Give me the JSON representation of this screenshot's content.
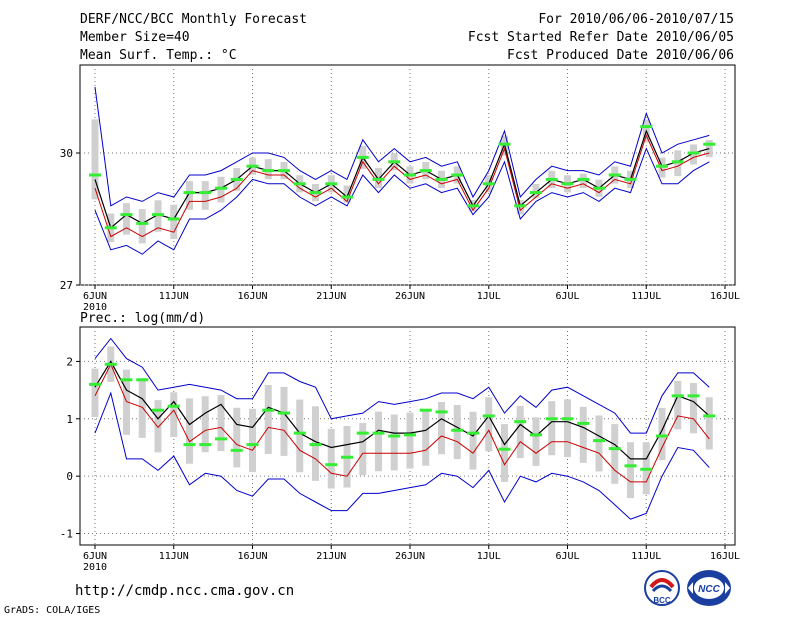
{
  "header": {
    "title": "DERF/NCC/BCC Monthly Forecast",
    "member_size": "Member Size=40",
    "variable": "Mean Surf. Temp.: °C",
    "period": "For 2010/06/06-2010/07/15",
    "fcst_started": "Fcst Started Refer Date 2010/06/05",
    "fcst_produced": "Fcst Produced Date 2010/06/06"
  },
  "footer": {
    "url": "http://cmdp.ncc.cma.gov.cn",
    "credit": "GrADS: COLA/IGES",
    "logo_left": "BCC",
    "logo_right": "NCC"
  },
  "colors": {
    "ensemble_mean": "#000000",
    "median": "#cc0000",
    "envelope": "#0000cc",
    "observation": "#33ee33",
    "member_box": "#d0d0d0",
    "grid": "#777777"
  },
  "chart_data": [
    {
      "type": "line",
      "title": "Mean Surf. Temp.: °C",
      "x_tick_labels": [
        "6JUN",
        "11JUN",
        "16JUN",
        "21JUN",
        "26JUN",
        "1JUL",
        "6JUL",
        "11JUL",
        "16JUL"
      ],
      "x_tick_days": [
        0,
        5,
        10,
        15,
        20,
        25,
        30,
        35,
        40
      ],
      "x_sub_label": "2010",
      "ylim": [
        27,
        32
      ],
      "y_tick_labels": [
        "27",
        "30"
      ],
      "y_ticks": [
        27,
        30
      ],
      "days": [
        0,
        1,
        2,
        3,
        4,
        5,
        6,
        7,
        8,
        9,
        10,
        11,
        12,
        13,
        14,
        15,
        16,
        17,
        18,
        19,
        20,
        21,
        22,
        23,
        24,
        25,
        26,
        27,
        28,
        29,
        30,
        31,
        32,
        33,
        34,
        35,
        36,
        37,
        38,
        39
      ],
      "series": [
        {
          "name": "ensemble mean",
          "color": "#000000",
          "values": [
            29.4,
            28.3,
            28.6,
            28.4,
            28.6,
            28.5,
            29.1,
            29.1,
            29.2,
            29.4,
            29.7,
            29.6,
            29.6,
            29.3,
            29.1,
            29.3,
            29.0,
            29.9,
            29.4,
            29.8,
            29.5,
            29.6,
            29.4,
            29.5,
            28.8,
            29.3,
            30.2,
            28.8,
            29.1,
            29.4,
            29.3,
            29.4,
            29.2,
            29.5,
            29.4,
            30.5,
            29.7,
            29.8,
            30.0,
            30.1
          ]
        },
        {
          "name": "median",
          "color": "#cc0000",
          "values": [
            29.2,
            28.1,
            28.3,
            28.1,
            28.3,
            28.2,
            28.9,
            28.9,
            29.0,
            29.2,
            29.6,
            29.5,
            29.5,
            29.2,
            29.0,
            29.2,
            28.9,
            29.8,
            29.3,
            29.7,
            29.4,
            29.5,
            29.3,
            29.4,
            28.7,
            29.2,
            30.1,
            28.7,
            29.0,
            29.3,
            29.2,
            29.3,
            29.1,
            29.4,
            29.3,
            30.4,
            29.6,
            29.7,
            29.9,
            30.0
          ]
        },
        {
          "name": "ensemble max",
          "color": "#0000cc",
          "values": [
            31.5,
            28.8,
            29.0,
            28.9,
            29.1,
            29.0,
            29.5,
            29.5,
            29.6,
            29.8,
            30.0,
            30.0,
            29.9,
            29.6,
            29.4,
            29.6,
            29.4,
            30.3,
            29.8,
            30.1,
            29.8,
            29.9,
            29.7,
            29.8,
            29.0,
            29.6,
            30.5,
            29.0,
            29.4,
            29.7,
            29.6,
            29.6,
            29.5,
            29.8,
            29.7,
            30.9,
            30.0,
            30.2,
            30.3,
            30.4
          ]
        },
        {
          "name": "ensemble min",
          "color": "#0000cc",
          "values": [
            28.7,
            27.8,
            27.9,
            27.7,
            28.0,
            27.8,
            28.5,
            28.5,
            28.7,
            29.0,
            29.4,
            29.3,
            29.3,
            29.0,
            28.8,
            29.0,
            28.8,
            29.5,
            29.1,
            29.5,
            29.2,
            29.3,
            29.1,
            29.2,
            28.6,
            29.0,
            29.8,
            28.5,
            28.9,
            29.1,
            29.0,
            29.1,
            28.9,
            29.2,
            29.1,
            30.1,
            29.3,
            29.3,
            29.6,
            29.8
          ]
        },
        {
          "name": "observation",
          "color": "#33ee33",
          "values": [
            29.5,
            28.3,
            28.6,
            28.4,
            28.6,
            28.5,
            29.1,
            29.1,
            29.2,
            29.4,
            29.7,
            29.6,
            29.6,
            29.3,
            29.1,
            29.3,
            29.0,
            29.9,
            29.4,
            29.8,
            29.5,
            29.6,
            29.4,
            29.5,
            28.8,
            29.3,
            30.2,
            28.8,
            29.1,
            29.4,
            29.3,
            29.4,
            29.2,
            29.5,
            29.4,
            30.6,
            29.7,
            29.8,
            30.0,
            30.2
          ]
        }
      ]
    },
    {
      "type": "line",
      "title": "Prec.: log(mm/d)",
      "x_tick_labels": [
        "6JUN",
        "11JUN",
        "16JUN",
        "21JUN",
        "26JUN",
        "1JUL",
        "6JUL",
        "11JUL",
        "16JUL"
      ],
      "x_tick_days": [
        0,
        5,
        10,
        15,
        20,
        25,
        30,
        35,
        40
      ],
      "x_sub_label": "2010",
      "ylim": [
        -1.2,
        2.6
      ],
      "y_tick_labels": [
        "-1",
        "0",
        "1",
        "2"
      ],
      "y_ticks": [
        -1,
        0,
        1,
        2
      ],
      "days": [
        0,
        1,
        2,
        3,
        4,
        5,
        6,
        7,
        8,
        9,
        10,
        11,
        12,
        13,
        14,
        15,
        16,
        17,
        18,
        19,
        20,
        21,
        22,
        23,
        24,
        25,
        26,
        27,
        28,
        29,
        30,
        31,
        32,
        33,
        34,
        35,
        36,
        37,
        38,
        39
      ],
      "series": [
        {
          "name": "ensemble mean",
          "color": "#000000",
          "values": [
            1.55,
            2.0,
            1.5,
            1.35,
            1.0,
            1.3,
            0.9,
            1.1,
            1.25,
            0.9,
            0.85,
            1.2,
            1.1,
            0.75,
            0.6,
            0.5,
            0.55,
            0.6,
            0.8,
            0.75,
            0.75,
            0.8,
            1.0,
            0.85,
            0.7,
            1.05,
            0.55,
            0.9,
            0.7,
            0.95,
            0.95,
            0.85,
            0.7,
            0.55,
            0.3,
            0.3,
            0.8,
            1.4,
            1.3,
            1.05
          ]
        },
        {
          "name": "median",
          "color": "#cc0000",
          "values": [
            1.4,
            1.95,
            1.3,
            1.2,
            0.85,
            1.15,
            0.6,
            0.8,
            0.85,
            0.55,
            0.45,
            0.85,
            0.8,
            0.45,
            0.3,
            0.05,
            0.0,
            0.4,
            0.4,
            0.4,
            0.4,
            0.45,
            0.7,
            0.6,
            0.4,
            0.8,
            0.2,
            0.6,
            0.4,
            0.6,
            0.6,
            0.5,
            0.4,
            0.1,
            -0.1,
            -0.1,
            0.5,
            1.05,
            1.0,
            0.65
          ]
        },
        {
          "name": "ensemble max",
          "color": "#0000cc",
          "values": [
            2.05,
            2.4,
            2.05,
            1.9,
            1.5,
            1.55,
            1.6,
            1.55,
            1.5,
            1.35,
            1.35,
            1.8,
            1.8,
            1.65,
            1.55,
            1.0,
            1.05,
            1.1,
            1.3,
            1.25,
            1.3,
            1.35,
            1.45,
            1.45,
            1.35,
            1.55,
            1.1,
            1.4,
            1.2,
            1.5,
            1.55,
            1.4,
            1.25,
            1.1,
            0.75,
            0.75,
            1.4,
            1.8,
            1.8,
            1.55
          ]
        },
        {
          "name": "ensemble min",
          "color": "#0000cc",
          "values": [
            0.75,
            1.45,
            0.3,
            0.3,
            0.1,
            0.35,
            -0.15,
            0.05,
            0.0,
            -0.25,
            -0.35,
            -0.05,
            -0.05,
            -0.3,
            -0.45,
            -0.6,
            -0.6,
            -0.3,
            -0.3,
            -0.25,
            -0.2,
            -0.15,
            0.05,
            0.0,
            -0.2,
            0.1,
            -0.45,
            0.0,
            -0.1,
            0.05,
            0.0,
            -0.1,
            -0.25,
            -0.5,
            -0.75,
            -0.65,
            0.0,
            0.5,
            0.45,
            0.15
          ]
        },
        {
          "name": "observation",
          "color": "#33ee33",
          "values": [
            1.6,
            1.95,
            1.68,
            1.68,
            1.15,
            1.22,
            0.55,
            0.55,
            0.65,
            0.45,
            0.55,
            1.15,
            1.1,
            0.75,
            0.55,
            0.2,
            0.33,
            0.75,
            0.75,
            0.7,
            0.72,
            1.15,
            1.12,
            0.8,
            0.75,
            1.05,
            0.47,
            0.95,
            0.72,
            1.0,
            1.0,
            0.92,
            0.62,
            0.48,
            0.18,
            0.12,
            0.7,
            1.4,
            1.4,
            1.05
          ]
        }
      ]
    }
  ]
}
